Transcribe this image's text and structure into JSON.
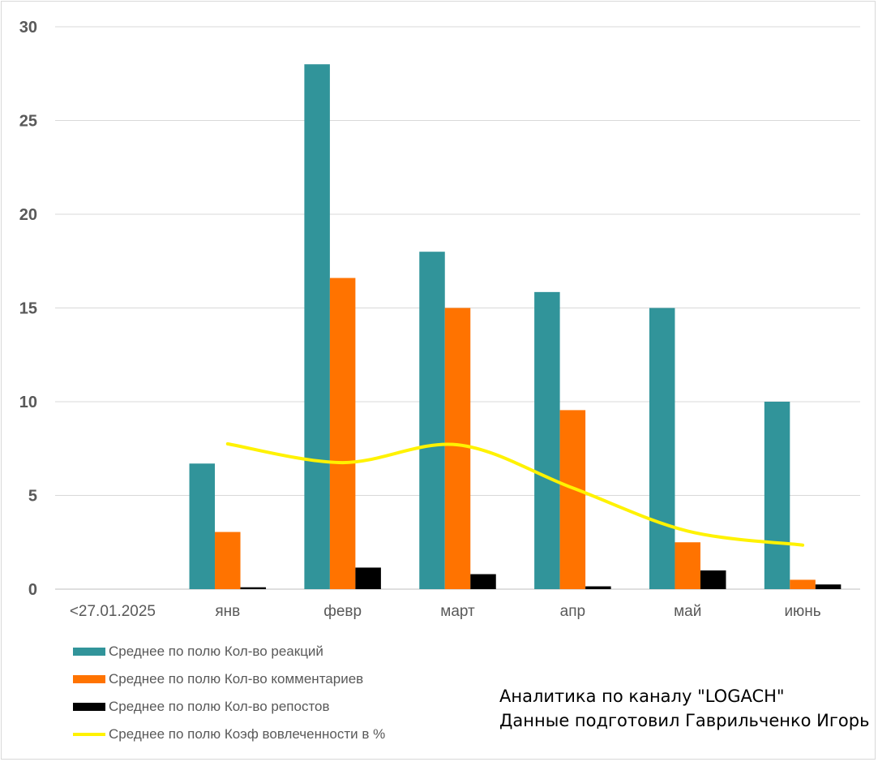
{
  "chart_data": {
    "type": "bar",
    "title": "",
    "xlabel": "",
    "ylabel": "",
    "categories": [
      "<27.01.2025",
      "янв",
      "февр",
      "март",
      "апр",
      "май",
      "июнь"
    ],
    "ylim": [
      0,
      30
    ],
    "yticks": [
      "0",
      "5",
      "10",
      "15",
      "20",
      "25",
      "30"
    ],
    "grid": true,
    "legend_position": "bottom-left",
    "series": [
      {
        "name": "Среднее по полю Кол-во реакций",
        "kind": "bar",
        "color": "#31949A",
        "values": [
          null,
          6.7,
          28,
          18,
          15.85,
          15,
          10
        ]
      },
      {
        "name": "Среднее по полю Кол-во комментариев",
        "kind": "bar",
        "color": "#FF7300",
        "values": [
          null,
          3.05,
          16.6,
          15,
          9.55,
          2.5,
          0.5
        ]
      },
      {
        "name": "Среднее по полю Кол-во репостов",
        "kind": "bar",
        "color": "#000000",
        "values": [
          null,
          0.1,
          1.15,
          0.8,
          0.15,
          1,
          0.25
        ]
      },
      {
        "name": "Среднее по полю Коэф вовлеченности в %",
        "kind": "line",
        "color": "#FFF200",
        "values": [
          null,
          7.75,
          6.75,
          7.7,
          5.4,
          3.1,
          2.35
        ]
      }
    ]
  },
  "annotation": {
    "line1": "Аналитика по каналу \"LOGACH\"",
    "line2": "Данные подготовил Гаврильченко Игорь"
  }
}
